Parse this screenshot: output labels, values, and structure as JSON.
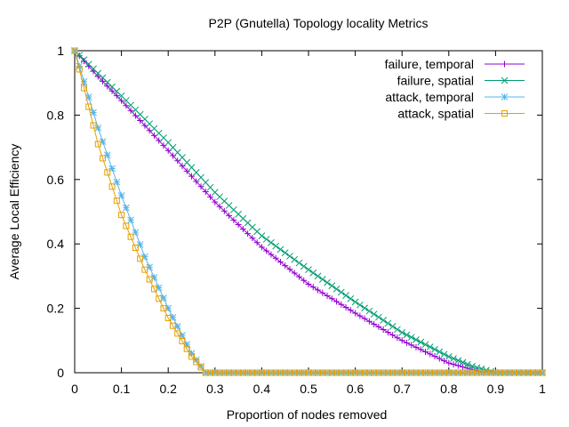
{
  "chart_data": {
    "type": "line",
    "title": "P2P (Gnutella) Topology locality Metrics",
    "xlabel": "Proportion of nodes removed",
    "ylabel": "Average Local Efficiency",
    "xlim": [
      0,
      1
    ],
    "ylim": [
      0,
      1
    ],
    "x_ticks": [
      "0",
      "0.1",
      "0.2",
      "0.3",
      "0.4",
      "0.5",
      "0.6",
      "0.7",
      "0.8",
      "0.9",
      "1"
    ],
    "y_ticks": [
      "0",
      "0.2",
      "0.4",
      "0.6",
      "0.8",
      "1"
    ],
    "grid": false,
    "legend_position": "top-right",
    "series": [
      {
        "name": "failure, temporal",
        "color": "#9400d3",
        "marker": "plus",
        "x": [
          0,
          0.05,
          0.1,
          0.2,
          0.3,
          0.4,
          0.5,
          0.6,
          0.7,
          0.8,
          0.85,
          0.88,
          1.0
        ],
        "y": [
          1.0,
          0.92,
          0.845,
          0.69,
          0.53,
          0.39,
          0.275,
          0.185,
          0.1,
          0.03,
          0.01,
          0.0,
          0.0
        ]
      },
      {
        "name": "failure, spatial",
        "color": "#009e73",
        "marker": "cross",
        "x": [
          0,
          0.05,
          0.1,
          0.2,
          0.3,
          0.4,
          0.5,
          0.6,
          0.7,
          0.8,
          0.85,
          0.9,
          1.0
        ],
        "y": [
          1.0,
          0.93,
          0.86,
          0.715,
          0.56,
          0.425,
          0.32,
          0.22,
          0.125,
          0.05,
          0.02,
          0.0,
          0.0
        ]
      },
      {
        "name": "attack, temporal",
        "color": "#56b4e9",
        "marker": "star",
        "x": [
          0,
          0.05,
          0.1,
          0.15,
          0.2,
          0.25,
          0.28,
          0.3,
          0.4,
          0.5,
          0.6,
          0.7,
          0.8,
          0.9,
          1.0
        ],
        "y": [
          1.0,
          0.76,
          0.55,
          0.36,
          0.2,
          0.06,
          0.0,
          0.0,
          0.0,
          0.0,
          0.0,
          0.0,
          0.0,
          0.0,
          0.0
        ]
      },
      {
        "name": "attack, spatial",
        "color": "#e69f00",
        "marker": "square",
        "x": [
          0,
          0.05,
          0.1,
          0.15,
          0.2,
          0.25,
          0.28,
          0.3,
          0.4,
          0.5,
          0.6,
          0.7,
          0.8,
          0.9,
          1.0
        ],
        "y": [
          1.0,
          0.71,
          0.49,
          0.32,
          0.17,
          0.05,
          0.0,
          0.0,
          0.0,
          0.0,
          0.0,
          0.0,
          0.0,
          0.0,
          0.0
        ]
      }
    ]
  }
}
